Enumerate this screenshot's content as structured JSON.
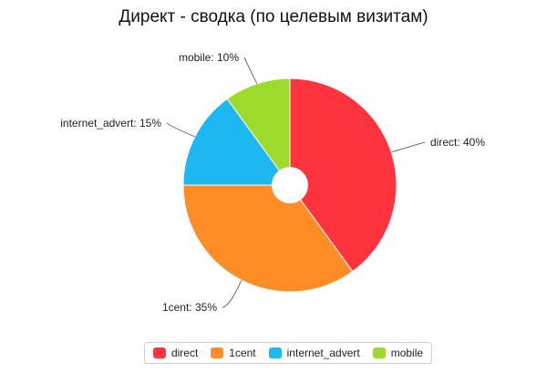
{
  "chart_data": {
    "type": "pie",
    "title": "Директ - сводка (по целевым визитам)",
    "series": [
      {
        "name": "direct",
        "value": 40,
        "label": "direct: 40%",
        "color": "#ff333d"
      },
      {
        "name": "1cent",
        "value": 35,
        "label": "1cent: 35%",
        "color": "#ff8c25"
      },
      {
        "name": "internet_advert",
        "value": 15,
        "label": "internet_advert: 15%",
        "color": "#1db8f2"
      },
      {
        "name": "mobile",
        "value": 10,
        "label": "mobile: 10%",
        "color": "#9dda2b"
      }
    ],
    "legend_position": "bottom-center",
    "donut_hole": true
  }
}
